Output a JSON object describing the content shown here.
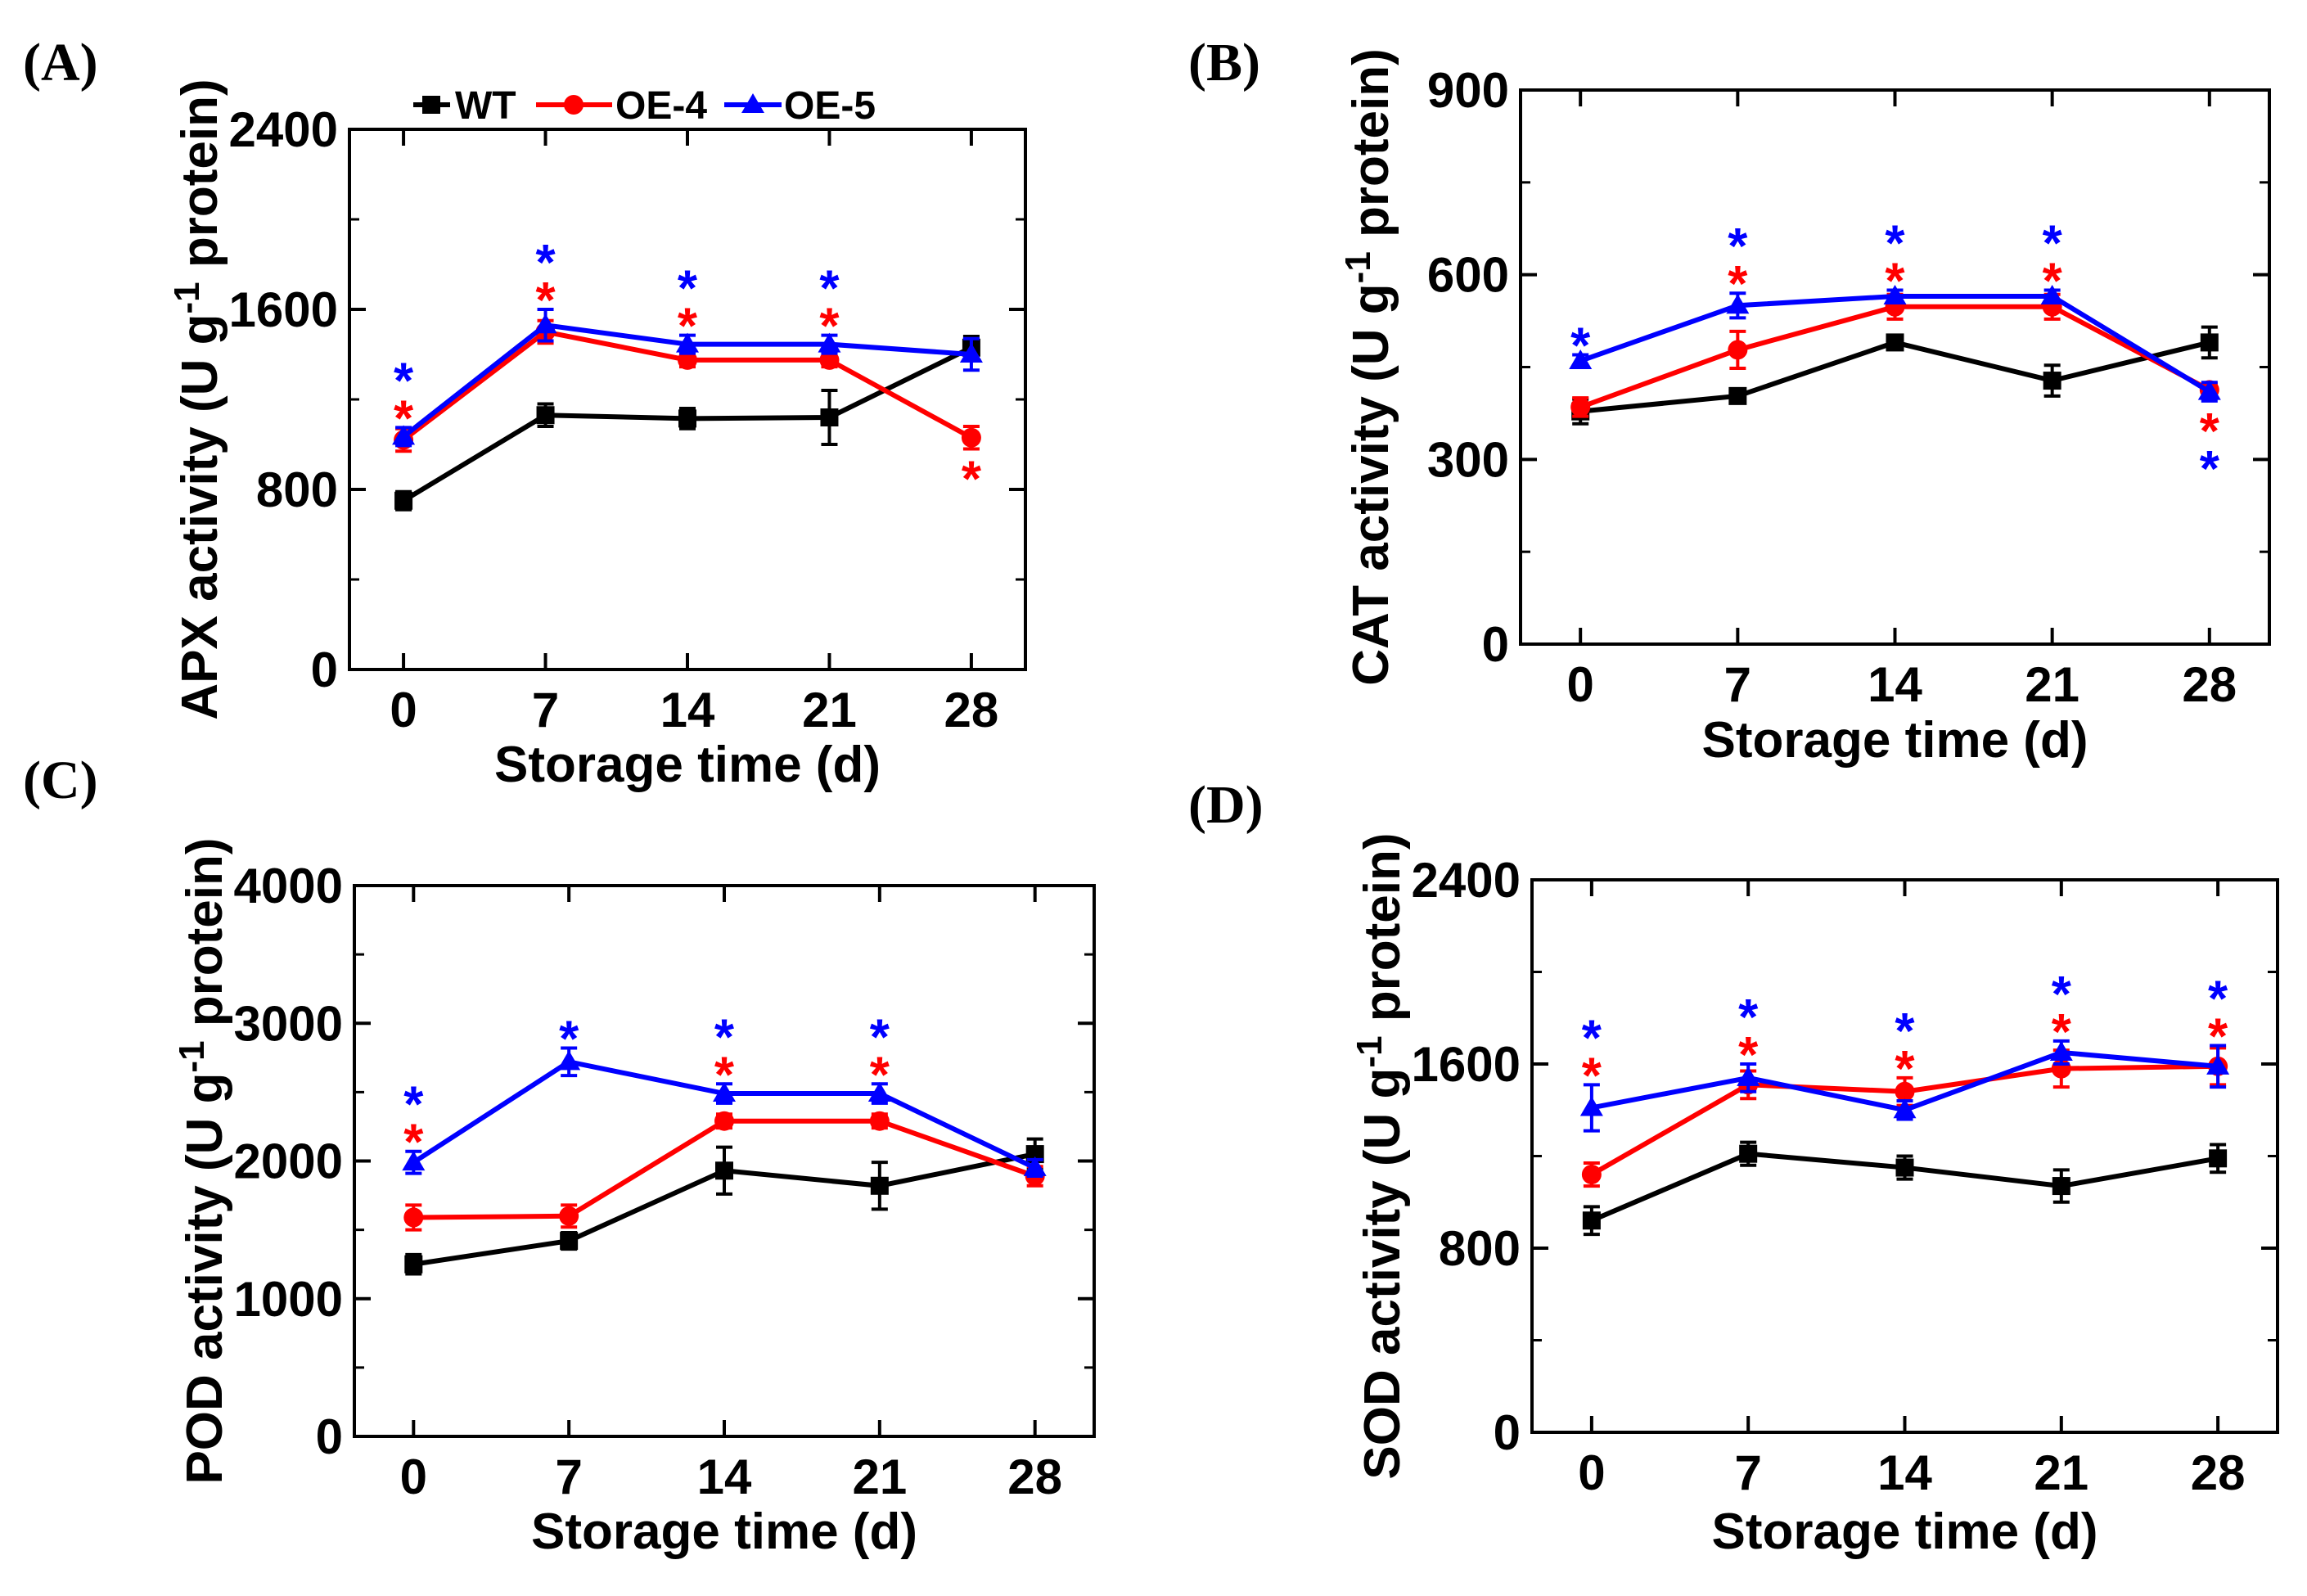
{
  "legend": {
    "series": [
      {
        "name": "WT",
        "color": "#000000",
        "marker": "square"
      },
      {
        "name": "OE-4",
        "color": "#ff0000",
        "marker": "circle"
      },
      {
        "name": "OE-5",
        "color": "#0000ff",
        "marker": "triangle"
      }
    ]
  },
  "chart_data": [
    {
      "panel": "(A)",
      "type": "line",
      "xlabel": "Storage time (d)",
      "ylabel_pre": "APX activity (U g",
      "ylabel_sup": "-1",
      "ylabel_post": " protein)",
      "x": [
        0,
        7,
        14,
        21,
        28
      ],
      "xticks": [
        "0",
        "7",
        "14",
        "21",
        "28"
      ],
      "ylim": [
        0,
        2400
      ],
      "yticks": [
        0,
        800,
        1600,
        2400
      ],
      "series": [
        {
          "name": "WT",
          "values": [
            750,
            1130,
            1115,
            1120,
            1430
          ],
          "errors": [
            40,
            50,
            45,
            120,
            50
          ]
        },
        {
          "name": "OE-4",
          "values": [
            1020,
            1500,
            1375,
            1375,
            1030
          ],
          "errors": [
            50,
            50,
            30,
            30,
            50
          ]
        },
        {
          "name": "OE-5",
          "values": [
            1035,
            1530,
            1445,
            1445,
            1400
          ],
          "errors": [
            40,
            70,
            40,
            40,
            70
          ]
        }
      ],
      "significance": [
        {
          "series": "OE-4",
          "marks": [
            "*",
            "*",
            "*",
            "*",
            "*"
          ]
        },
        {
          "series": "OE-5",
          "marks": [
            "*",
            "*",
            "*",
            "*",
            ""
          ]
        }
      ]
    },
    {
      "panel": "(B)",
      "type": "line",
      "xlabel": "Storage time (d)",
      "ylabel_pre": "CAT activity (U g",
      "ylabel_sup": "-1",
      "ylabel_post": " protein)",
      "x": [
        0,
        7,
        14,
        21,
        28
      ],
      "xticks": [
        "0",
        "7",
        "14",
        "21",
        "28"
      ],
      "ylim": [
        0,
        900
      ],
      "yticks": [
        0,
        300,
        600,
        900
      ],
      "series": [
        {
          "name": "WT",
          "values": [
            378,
            403,
            490,
            428,
            490
          ],
          "errors": [
            20,
            8,
            10,
            25,
            25
          ]
        },
        {
          "name": "OE-4",
          "values": [
            385,
            478,
            548,
            548,
            413
          ],
          "errors": [
            15,
            30,
            20,
            20,
            10
          ]
        },
        {
          "name": "OE-5",
          "values": [
            460,
            550,
            565,
            565,
            410
          ],
          "errors": [
            10,
            20,
            10,
            10,
            15
          ]
        }
      ],
      "significance": [
        {
          "series": "OE-4",
          "marks": [
            "",
            "*",
            "*",
            "*",
            "*"
          ]
        },
        {
          "series": "OE-5",
          "marks": [
            "*",
            "*",
            "*",
            "*",
            "*"
          ]
        }
      ]
    },
    {
      "panel": "(C)",
      "type": "line",
      "xlabel": "Storage time (d)",
      "ylabel_pre": "POD activity (U g",
      "ylabel_sup": "-1",
      "ylabel_post": " protein)",
      "x": [
        0,
        7,
        14,
        21,
        28
      ],
      "xticks": [
        "0",
        "7",
        "14",
        "21",
        "28"
      ],
      "ylim": [
        0,
        4000
      ],
      "yticks": [
        0,
        1000,
        2000,
        3000,
        4000
      ],
      "series": [
        {
          "name": "WT",
          "values": [
            1250,
            1420,
            1930,
            1820,
            2050
          ],
          "errors": [
            70,
            60,
            170,
            170,
            110
          ]
        },
        {
          "name": "OE-4",
          "values": [
            1590,
            1600,
            2290,
            2290,
            1890
          ],
          "errors": [
            90,
            80,
            50,
            50,
            70
          ]
        },
        {
          "name": "OE-5",
          "values": [
            1990,
            2720,
            2490,
            2490,
            1950
          ],
          "errors": [
            80,
            100,
            70,
            70,
            60
          ]
        }
      ],
      "significance": [
        {
          "series": "OE-4",
          "marks": [
            "*",
            "",
            "*",
            "*",
            ""
          ]
        },
        {
          "series": "OE-5",
          "marks": [
            "*",
            "*",
            "*",
            "*",
            ""
          ]
        }
      ]
    },
    {
      "panel": "(D)",
      "type": "line",
      "xlabel": "Storage time (d)",
      "ylabel_pre": "SOD activity (U g",
      "ylabel_sup": "-1",
      "ylabel_post": " protein)",
      "x": [
        0,
        7,
        14,
        21,
        28
      ],
      "xticks": [
        "0",
        "7",
        "14",
        "21",
        "28"
      ],
      "ylim": [
        0,
        2400
      ],
      "yticks": [
        0,
        800,
        1600,
        2400
      ],
      "series": [
        {
          "name": "WT",
          "values": [
            920,
            1210,
            1150,
            1070,
            1190
          ],
          "errors": [
            60,
            50,
            50,
            70,
            60
          ]
        },
        {
          "name": "OE-4",
          "values": [
            1120,
            1510,
            1480,
            1580,
            1590
          ],
          "errors": [
            50,
            60,
            60,
            80,
            80
          ]
        },
        {
          "name": "OE-5",
          "values": [
            1410,
            1540,
            1400,
            1650,
            1590
          ],
          "errors": [
            100,
            60,
            40,
            50,
            90
          ]
        }
      ],
      "significance": [
        {
          "series": "OE-4",
          "marks": [
            "*",
            "*",
            "*",
            "*",
            "*"
          ]
        },
        {
          "series": "OE-5",
          "marks": [
            "*",
            "*",
            "*",
            "*",
            "*"
          ]
        }
      ]
    }
  ]
}
